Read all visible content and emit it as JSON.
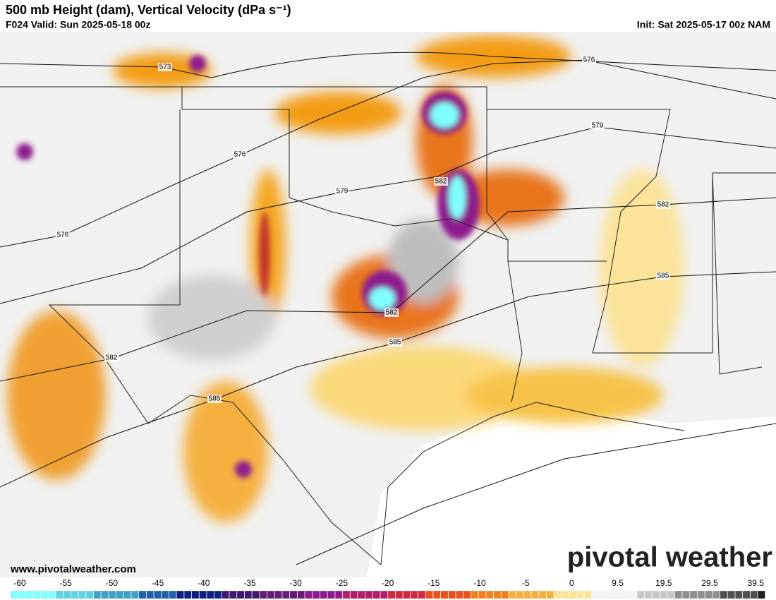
{
  "header": {
    "title": "500 mb Height (dam), Vertical Velocity (dPa s⁻¹)",
    "valid": "F024 Valid: Sun 2025-05-18 00z",
    "init": "Init: Sat 2025-05-17 00z NAM"
  },
  "contour_labels": [
    573,
    576,
    576,
    579,
    579,
    576,
    582,
    582,
    585,
    582,
    585,
    582,
    585
  ],
  "colorbar_labels": [
    -60,
    -55,
    -50,
    -45,
    -40,
    -35,
    -30,
    -25,
    -20,
    -15,
    -10,
    -5,
    0,
    9.5,
    19.5,
    29.5,
    39.5
  ],
  "footer": {
    "website": "www.pivotalweather.com",
    "logo": "pivotal weather"
  }
}
